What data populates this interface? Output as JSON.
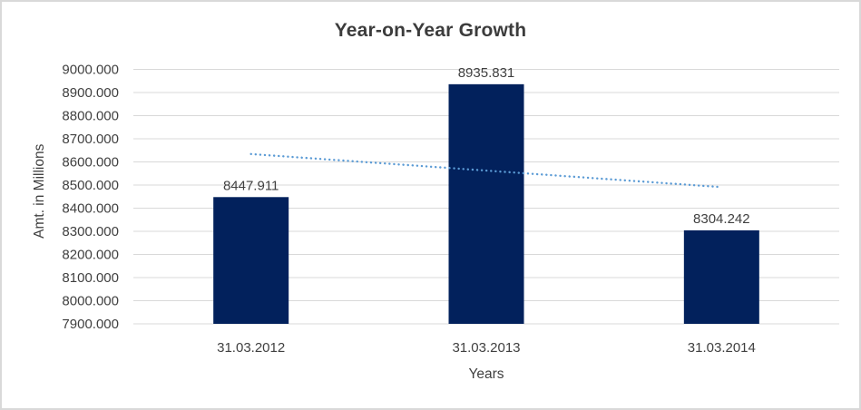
{
  "chart_data": {
    "type": "bar",
    "title": "Year-on-Year Growth",
    "xlabel": "Years",
    "ylabel": "Amt. in Millions",
    "categories": [
      "31.03.2012",
      "31.03.2013",
      "31.03.2014"
    ],
    "values": [
      8447.911,
      8935.831,
      8304.242
    ],
    "data_labels": [
      "8447.911",
      "8935.831",
      "8304.242"
    ],
    "ylim": [
      7900,
      9000
    ],
    "ytick_step": 100,
    "ytick_labels": [
      "9000.000",
      "8900.000",
      "8800.000",
      "8700.000",
      "8600.000",
      "8500.000",
      "8400.000",
      "8300.000",
      "8200.000",
      "8100.000",
      "8000.000",
      "7900.000"
    ],
    "grid": true,
    "legend": "none",
    "bar_color": "#02215C",
    "trendline": {
      "style": "dotted",
      "color": "#5B9BD5",
      "start_value": 8634,
      "end_value": 8491
    }
  },
  "colors": {
    "text": "#404040",
    "title_text": "#3C3C3C",
    "gridline": "#D9D9D9",
    "frame_border": "#D9D9D9",
    "background": "#FFFFFF"
  }
}
